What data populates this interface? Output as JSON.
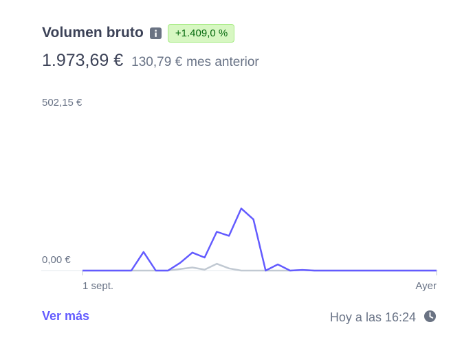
{
  "card": {
    "title": "Volumen bruto",
    "info_icon": "info-icon",
    "change_badge": "+1.409,0 %",
    "current_value": "1.973,69 €",
    "previous_value": "130,79 €",
    "previous_label": "mes anterior",
    "footer_link": "Ver más",
    "updated_text": "Hoy a las 16:24",
    "clock_icon": "clock-icon"
  },
  "colors": {
    "accent": "#635bff",
    "comparison": "#c1c9d2",
    "badge_bg": "#d7f7c2",
    "badge_text": "#05690d"
  },
  "chart_data": {
    "type": "line",
    "y_tick_labels": [
      "502,15 €",
      "0,00 €"
    ],
    "x_tick_labels": [
      "1 sept.",
      "Ayer"
    ],
    "ylim": [
      0,
      502.15
    ],
    "series": [
      {
        "values": [
          0,
          0,
          0,
          0,
          0,
          60,
          0,
          0,
          25,
          58,
          42,
          125,
          112,
          200,
          165,
          0,
          20,
          0,
          2,
          0,
          0,
          0,
          0,
          0,
          0,
          0,
          0,
          0,
          0,
          0
        ]
      },
      {
        "values": [
          0,
          0,
          0,
          0,
          0,
          0,
          0,
          0,
          5,
          10,
          3,
          22,
          7,
          0,
          0,
          0,
          0,
          0,
          2,
          0,
          0,
          0,
          0,
          0,
          0,
          0,
          0,
          0,
          0,
          0
        ]
      }
    ]
  }
}
